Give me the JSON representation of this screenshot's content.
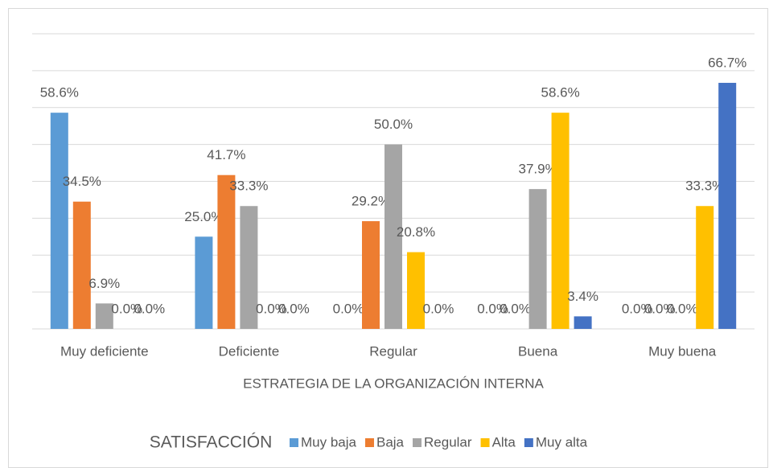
{
  "chart_data": {
    "type": "bar",
    "x_label": "ESTRATEGIA DE LA ORGANIZACIÓN INTERNA",
    "legend_title": "SATISFACCIÓN",
    "categories": [
      "Muy deficiente",
      "Deficiente",
      "Regular",
      "Buena",
      "Muy buena"
    ],
    "series": [
      {
        "name": "Muy baja",
        "color": "#5b9bd5",
        "values": [
          58.6,
          25.0,
          0,
          0,
          0
        ],
        "value_labels": [
          "58.6%",
          "25.0%",
          "0.0%",
          "0.0%",
          "0.0%"
        ]
      },
      {
        "name": "Baja",
        "color": "#ed7d31",
        "values": [
          34.5,
          41.7,
          29.2,
          0,
          0
        ],
        "value_labels": [
          "34.5%",
          "41.7%",
          "29.2%",
          "0.0%",
          "0.0%"
        ]
      },
      {
        "name": "Regular",
        "color": "#a5a5a5",
        "values": [
          6.9,
          33.3,
          50.0,
          37.9,
          0
        ],
        "value_labels": [
          "6.9%",
          "33.3%",
          "50.0%",
          "37.9%",
          "0.0%"
        ]
      },
      {
        "name": "Alta",
        "color": "#ffc000",
        "values": [
          0,
          0,
          20.8,
          58.6,
          33.3
        ],
        "value_labels": [
          "0.0%",
          "0.0%",
          "20.8%",
          "58.6%",
          "33.3%"
        ]
      },
      {
        "name": "Muy alta",
        "color": "#4472c4",
        "values": [
          0,
          0,
          0,
          3.4,
          66.7
        ],
        "value_labels": [
          "0.0%",
          "0.0%",
          "0.0%",
          "3.4%",
          "66.7%"
        ]
      }
    ],
    "ylim": [
      0,
      80
    ],
    "yticks": [
      0,
      10,
      20,
      30,
      40,
      50,
      60,
      70,
      80
    ],
    "grid": true,
    "legend": "bottom"
  }
}
